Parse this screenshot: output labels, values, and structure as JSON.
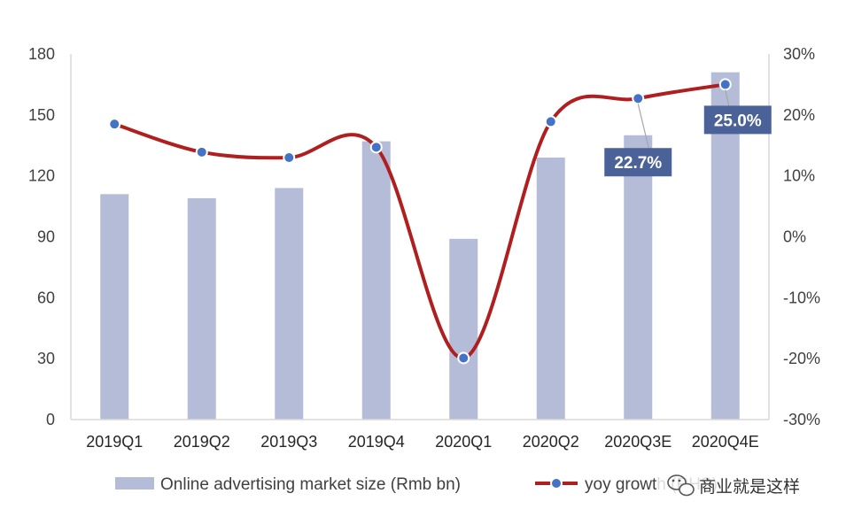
{
  "chart_data": {
    "type": "bar+line",
    "categories": [
      "2019Q1",
      "2019Q2",
      "2019Q3",
      "2019Q4",
      "2020Q1",
      "2020Q2",
      "2020Q3E",
      "2020Q4E"
    ],
    "series": [
      {
        "name": "Online advertising market size (Rmb bn)",
        "type": "bar",
        "axis": "left",
        "values": [
          111,
          109,
          114,
          137,
          89,
          129,
          140,
          171
        ]
      },
      {
        "name": "yoy growth (RHS)",
        "type": "line",
        "axis": "right",
        "values": [
          18.5,
          13.9,
          13.0,
          14.7,
          -19.9,
          18.9,
          22.7,
          25.0
        ]
      }
    ],
    "left_axis": {
      "ylim": [
        0,
        180
      ],
      "ticks": [
        0,
        30,
        60,
        90,
        120,
        150,
        180
      ],
      "tick_labels": [
        "0",
        "30",
        "60",
        "90",
        "120",
        "150",
        "180"
      ]
    },
    "right_axis": {
      "ylim": [
        -30,
        30
      ],
      "ticks": [
        -30,
        -20,
        -10,
        0,
        10,
        20,
        30
      ],
      "tick_labels": [
        "-30%",
        "-20%",
        "-10%",
        "0%",
        "10%",
        "20%",
        "30%"
      ]
    },
    "annotations": [
      {
        "category": "2020Q3E",
        "text": "22.7%"
      },
      {
        "category": "2020Q4E",
        "text": "25.0%"
      }
    ],
    "legend": {
      "placement": "bottom",
      "items": [
        "Online advertising market size (Rmb bn)",
        "yoy growth (RHS)"
      ]
    },
    "grid": false,
    "colors": {
      "bar": "#b4bcd8",
      "line": "#b01f1f",
      "marker_fill": "#4472c4",
      "callout_bg": "#4a6297",
      "axis": "#d9d9d9"
    }
  },
  "watermark": {
    "text": "商业就是这样",
    "icon": "wechat-icon"
  }
}
